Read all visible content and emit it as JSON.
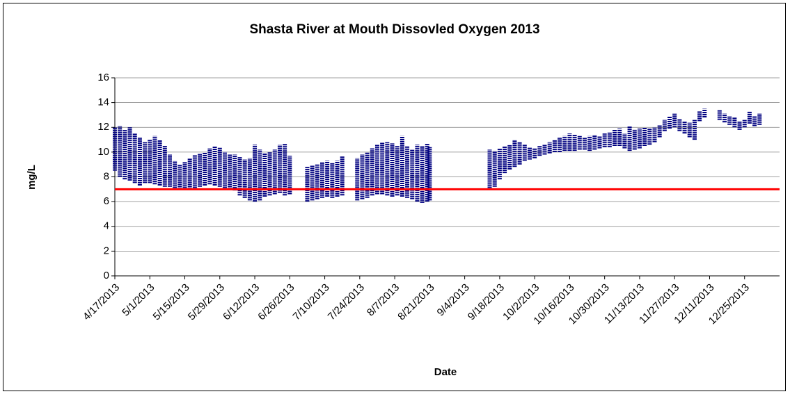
{
  "chart_data": {
    "type": "range",
    "title": "Shasta River at Mouth Dissovled Oxygen 2013",
    "x_label": "Date",
    "y_label": "mg/L",
    "color": "#000080",
    "threshold": 7,
    "threshold_color": "#ff0000",
    "grid": true,
    "ylim": [
      0,
      16
    ],
    "yticks": [
      0,
      2,
      4,
      6,
      8,
      10,
      12,
      14,
      16
    ],
    "xlim": [
      "4/17/2013",
      "1/8/2014"
    ],
    "xticks": [
      "4/17/2013",
      "5/1/2013",
      "5/15/2013",
      "5/29/2013",
      "6/12/2013",
      "6/26/2013",
      "7/10/2013",
      "7/24/2013",
      "8/7/2013",
      "8/21/2013",
      "9/4/2013",
      "9/18/2013",
      "10/2/2013",
      "10/16/2013",
      "10/30/2013",
      "11/13/2013",
      "11/27/2013",
      "12/11/2013",
      "12/25/2013"
    ],
    "x": [
      "4/17/2013",
      "4/19/2013",
      "4/21/2013",
      "4/23/2013",
      "4/25/2013",
      "4/27/2013",
      "4/29/2013",
      "5/1/2013",
      "5/3/2013",
      "5/5/2013",
      "5/7/2013",
      "5/9/2013",
      "5/11/2013",
      "5/13/2013",
      "5/15/2013",
      "5/17/2013",
      "5/19/2013",
      "5/21/2013",
      "5/23/2013",
      "5/25/2013",
      "5/27/2013",
      "5/29/2013",
      "5/31/2013",
      "6/2/2013",
      "6/4/2013",
      "6/6/2013",
      "6/8/2013",
      "6/10/2013",
      "6/12/2013",
      "6/14/2013",
      "6/16/2013",
      "6/18/2013",
      "6/20/2013",
      "6/22/2013",
      "6/24/2013",
      "6/26/2013",
      "7/3/2013",
      "7/5/2013",
      "7/7/2013",
      "7/9/2013",
      "7/11/2013",
      "7/13/2013",
      "7/15/2013",
      "7/17/2013",
      "7/23/2013",
      "7/25/2013",
      "7/27/2013",
      "7/29/2013",
      "7/31/2013",
      "8/2/2013",
      "8/4/2013",
      "8/6/2013",
      "8/8/2013",
      "8/10/2013",
      "8/12/2013",
      "8/14/2013",
      "8/16/2013",
      "8/18/2013",
      "8/20/2013",
      "8/21/2013",
      "9/14/2013",
      "9/16/2013",
      "9/18/2013",
      "9/20/2013",
      "9/22/2013",
      "9/24/2013",
      "9/26/2013",
      "9/28/2013",
      "9/30/2013",
      "10/2/2013",
      "10/4/2013",
      "10/6/2013",
      "10/8/2013",
      "10/10/2013",
      "10/12/2013",
      "10/14/2013",
      "10/16/2013",
      "10/18/2013",
      "10/20/2013",
      "10/22/2013",
      "10/24/2013",
      "10/26/2013",
      "10/28/2013",
      "10/30/2013",
      "11/1/2013",
      "11/3/2013",
      "11/5/2013",
      "11/7/2013",
      "11/9/2013",
      "11/11/2013",
      "11/13/2013",
      "11/15/2013",
      "11/17/2013",
      "11/19/2013",
      "11/21/2013",
      "11/23/2013",
      "11/25/2013",
      "11/27/2013",
      "11/29/2013",
      "12/1/2013",
      "12/3/2013",
      "12/5/2013",
      "12/7/2013",
      "12/9/2013",
      "12/15/2013",
      "12/17/2013",
      "12/19/2013",
      "12/21/2013",
      "12/23/2013",
      "12/25/2013",
      "12/27/2013",
      "12/29/2013",
      "12/31/2013"
    ],
    "low": [
      8.5,
      8,
      7.8,
      7.7,
      7.5,
      7.3,
      7.5,
      7.5,
      7.4,
      7.3,
      7.2,
      7.2,
      7.1,
      7,
      7.1,
      7,
      7.1,
      7.2,
      7.3,
      7.4,
      7.3,
      7.2,
      7.1,
      7,
      6.9,
      6.5,
      6.3,
      6.1,
      6,
      6.1,
      6.4,
      6.5,
      6.6,
      6.7,
      6.5,
      6.6,
      6,
      6.1,
      6.2,
      6.3,
      6.4,
      6.3,
      6.4,
      6.5,
      6.1,
      6.2,
      6.3,
      6.5,
      6.6,
      6.6,
      6.5,
      6.4,
      6.5,
      6.4,
      6.3,
      6.2,
      6,
      5.9,
      6,
      6.1,
      7.1,
      7.2,
      7.8,
      8.3,
      8.6,
      8.8,
      9,
      9.3,
      9.4,
      9.5,
      9.7,
      9.8,
      9.9,
      10,
      10,
      10.1,
      10.1,
      10.1,
      10.2,
      10.2,
      10.1,
      10.2,
      10.3,
      10.4,
      10.4,
      10.5,
      10.5,
      10.3,
      10.1,
      10.2,
      10.3,
      10.5,
      10.6,
      10.8,
      11.2,
      11.7,
      11.9,
      12,
      11.7,
      11.5,
      11.2,
      11,
      12.5,
      12.8,
      12.6,
      12.4,
      12.2,
      12,
      11.8,
      12,
      12.3,
      12.1,
      12.2
    ],
    "high": [
      12,
      12.1,
      11.8,
      12,
      11.5,
      11.2,
      10.8,
      11,
      11.3,
      11,
      10.5,
      9.8,
      9.3,
      9,
      9.2,
      9.5,
      9.8,
      9.9,
      10,
      10.3,
      10.5,
      10.4,
      10,
      9.8,
      9.8,
      9.6,
      9.4,
      9.5,
      10.6,
      10.2,
      9.9,
      10,
      10.2,
      10.6,
      10.7,
      9.7,
      8.8,
      8.9,
      9,
      9.2,
      9.3,
      9.1,
      9.3,
      9.7,
      9.5,
      9.8,
      10,
      10.3,
      10.6,
      10.8,
      10.8,
      10.7,
      10.5,
      11.3,
      10.5,
      10.2,
      10.6,
      10.5,
      10.7,
      10.4,
      10.2,
      10.1,
      10.3,
      10.5,
      10.6,
      11,
      10.8,
      10.6,
      10.4,
      10.3,
      10.5,
      10.6,
      10.8,
      11,
      11.2,
      11.3,
      11.5,
      11.4,
      11.3,
      11.2,
      11.3,
      11.4,
      11.3,
      11.5,
      11.6,
      11.8,
      11.9,
      11.5,
      12.1,
      11.8,
      11.9,
      12,
      11.9,
      12,
      12.2,
      12.6,
      12.9,
      13.1,
      12.7,
      12.5,
      12.4,
      12.6,
      13.3,
      13.5,
      13.4,
      13.1,
      12.9,
      12.8,
      12.5,
      12.6,
      13.3,
      12.9,
      13.1
    ]
  }
}
